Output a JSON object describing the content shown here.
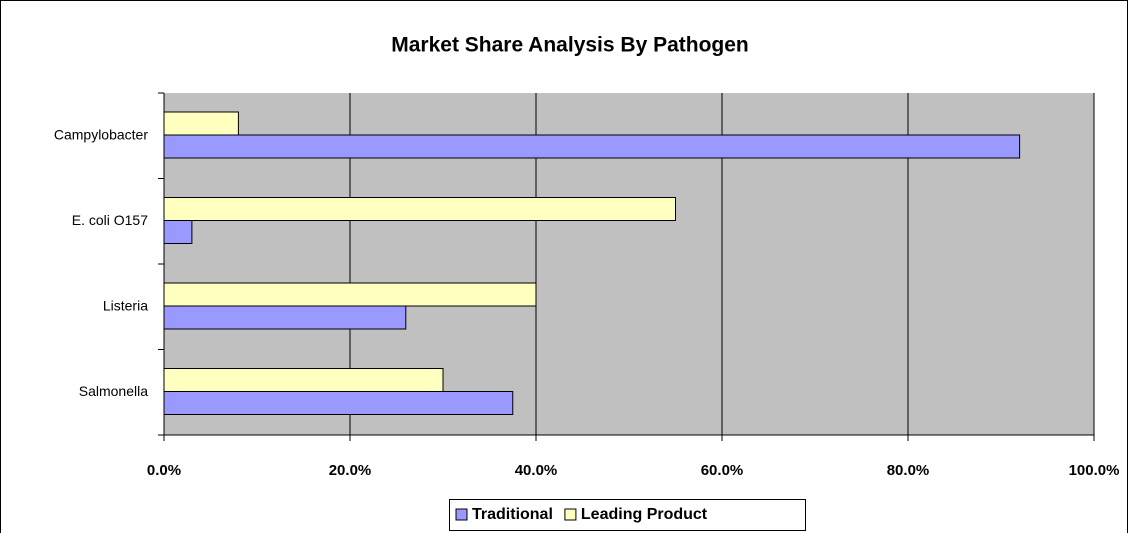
{
  "chart_data": {
    "type": "hbar",
    "title": "Market Share Analysis By Pathogen",
    "categories": [
      "Campylobacter",
      "E. coli O157",
      "Listeria",
      "Salmonella"
    ],
    "series": [
      {
        "name": "Traditional",
        "color": "#9999ff",
        "values": [
          92,
          3,
          26,
          37.5
        ]
      },
      {
        "name": "Leading Product",
        "color": "#ffffc0",
        "values": [
          8,
          55,
          40,
          30
        ]
      }
    ],
    "xlim": [
      0,
      100
    ],
    "xticks": [
      {
        "value": 0,
        "label": "0.0%"
      },
      {
        "value": 20,
        "label": "20.0%"
      },
      {
        "value": 40,
        "label": "40.0%"
      },
      {
        "value": 60,
        "label": "60.0%"
      },
      {
        "value": 80,
        "label": "80.0%"
      },
      {
        "value": 100,
        "label": "100.0%"
      }
    ],
    "grid": true,
    "legend": "bottom"
  }
}
